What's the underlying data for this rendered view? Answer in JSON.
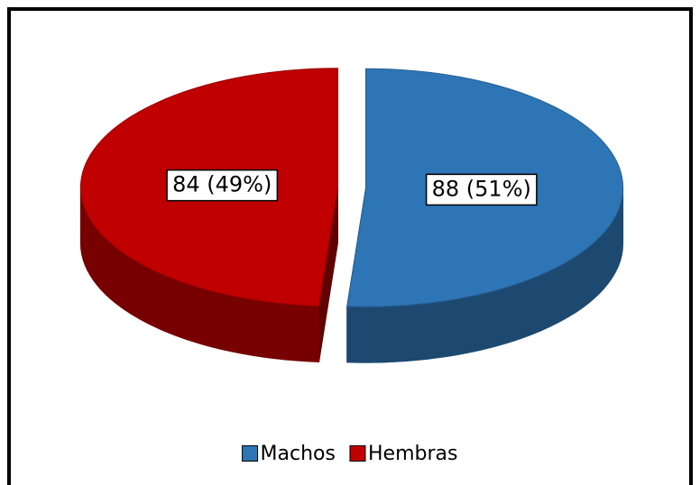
{
  "chart_data": {
    "type": "pie",
    "categories": [
      "Machos",
      "Hembras"
    ],
    "values": [
      88,
      84
    ],
    "value_labels": [
      "88 (51%)",
      "84 (49%)"
    ],
    "colors": [
      "#2e75b6",
      "#c00000"
    ],
    "legend_position": "bottom"
  }
}
